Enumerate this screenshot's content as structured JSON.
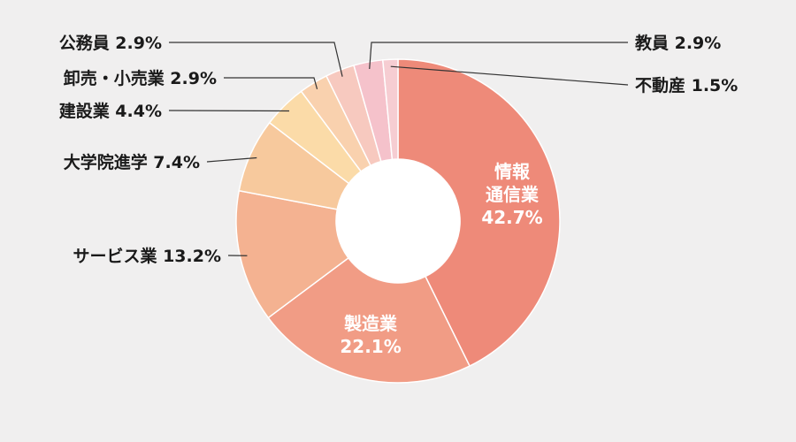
{
  "chart_data": {
    "type": "pie",
    "variant": "donut",
    "slices": [
      {
        "label": "情報通信業",
        "label_lines": [
          "情報",
          "通信業"
        ],
        "value": 42.7,
        "value_text": "42.7%",
        "color": "#ee8a79",
        "label_position": "inside"
      },
      {
        "label": "製造業",
        "label_lines": [
          "製造業"
        ],
        "value": 22.1,
        "value_text": "22.1%",
        "color": "#f19c85",
        "label_position": "inside"
      },
      {
        "label": "サービス業",
        "value": 13.2,
        "value_text": "13.2%",
        "color": "#f4b291",
        "label_position": "left"
      },
      {
        "label": "大学院進学",
        "value": 7.4,
        "value_text": "7.4%",
        "color": "#f7c99d",
        "label_position": "left"
      },
      {
        "label": "建設業",
        "value": 4.4,
        "value_text": "4.4%",
        "color": "#fbdba8",
        "label_position": "left"
      },
      {
        "label": "卸売・小売業",
        "value": 2.9,
        "value_text": "2.9%",
        "color": "#f9d1ae",
        "label_position": "left"
      },
      {
        "label": "公務員",
        "value": 2.9,
        "value_text": "2.9%",
        "color": "#f7c9bf",
        "label_position": "left"
      },
      {
        "label": "教員",
        "value": 2.9,
        "value_text": "2.9%",
        "color": "#f5c2cb",
        "label_position": "right"
      },
      {
        "label": "不動産",
        "value": 1.5,
        "value_text": "1.5%",
        "color": "#f6cdd2",
        "label_position": "right"
      }
    ]
  }
}
